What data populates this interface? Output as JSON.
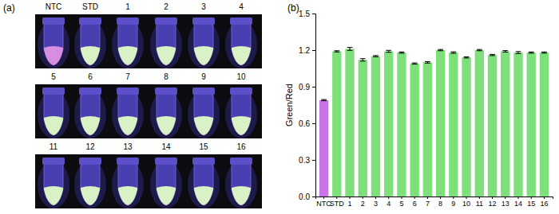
{
  "chart_data": {
    "type": "bar",
    "title": "(b)",
    "y_label": "Green/Red",
    "categories": [
      "NTC",
      "STD",
      "1",
      "2",
      "3",
      "4",
      "5",
      "6",
      "7",
      "8",
      "9",
      "10",
      "11",
      "12",
      "13",
      "14",
      "15",
      "16"
    ],
    "values": [
      0.79,
      1.19,
      1.21,
      1.12,
      1.15,
      1.19,
      1.18,
      1.09,
      1.1,
      1.2,
      1.18,
      1.14,
      1.2,
      1.16,
      1.19,
      1.18,
      1.18,
      1.18
    ],
    "errors": [
      0.005,
      0.005,
      0.012,
      0.01,
      0.005,
      0.008,
      0.005,
      0.005,
      0.006,
      0.005,
      0.006,
      0.005,
      0.005,
      0.005,
      0.006,
      0.008,
      0.005,
      0.005
    ],
    "colors": [
      "#c874e6",
      "#7ee07a",
      "#7ee07a",
      "#7ee07a",
      "#7ee07a",
      "#7ee07a",
      "#7ee07a",
      "#7ee07a",
      "#7ee07a",
      "#7ee07a",
      "#7ee07a",
      "#7ee07a",
      "#7ee07a",
      "#7ee07a",
      "#7ee07a",
      "#7ee07a",
      "#7ee07a",
      "#7ee07a"
    ],
    "ylim": [
      0,
      1.5
    ],
    "yticks": [
      {
        "value": 0,
        "label": "0.0"
      },
      0.3,
      0.6,
      0.9,
      1.2,
      1.5
    ],
    "grid": false
  },
  "photo_panel": {
    "label": "(a)",
    "rows": [
      [
        "NTC",
        "STD",
        "1",
        "2",
        "3",
        "4"
      ],
      [
        "5",
        "6",
        "7",
        "8",
        "9",
        "10"
      ],
      [
        "11",
        "12",
        "13",
        "14",
        "15",
        "16"
      ]
    ],
    "colors": [
      [
        "#d88ee0",
        "#d8f2c6",
        "#d8f2c6",
        "#d8f2c6",
        "#d8f2c6",
        "#d8f2c6"
      ],
      [
        "#d8f2c6",
        "#d8f2c6",
        "#d8f2c6",
        "#d8f2c6",
        "#d8f2c6",
        "#d8f2c6"
      ],
      [
        "#d8f2c6",
        "#d8f2c6",
        "#d8f2c6",
        "#d8f2c6",
        "#d8f2c6",
        "#d8f2c6"
      ]
    ]
  }
}
